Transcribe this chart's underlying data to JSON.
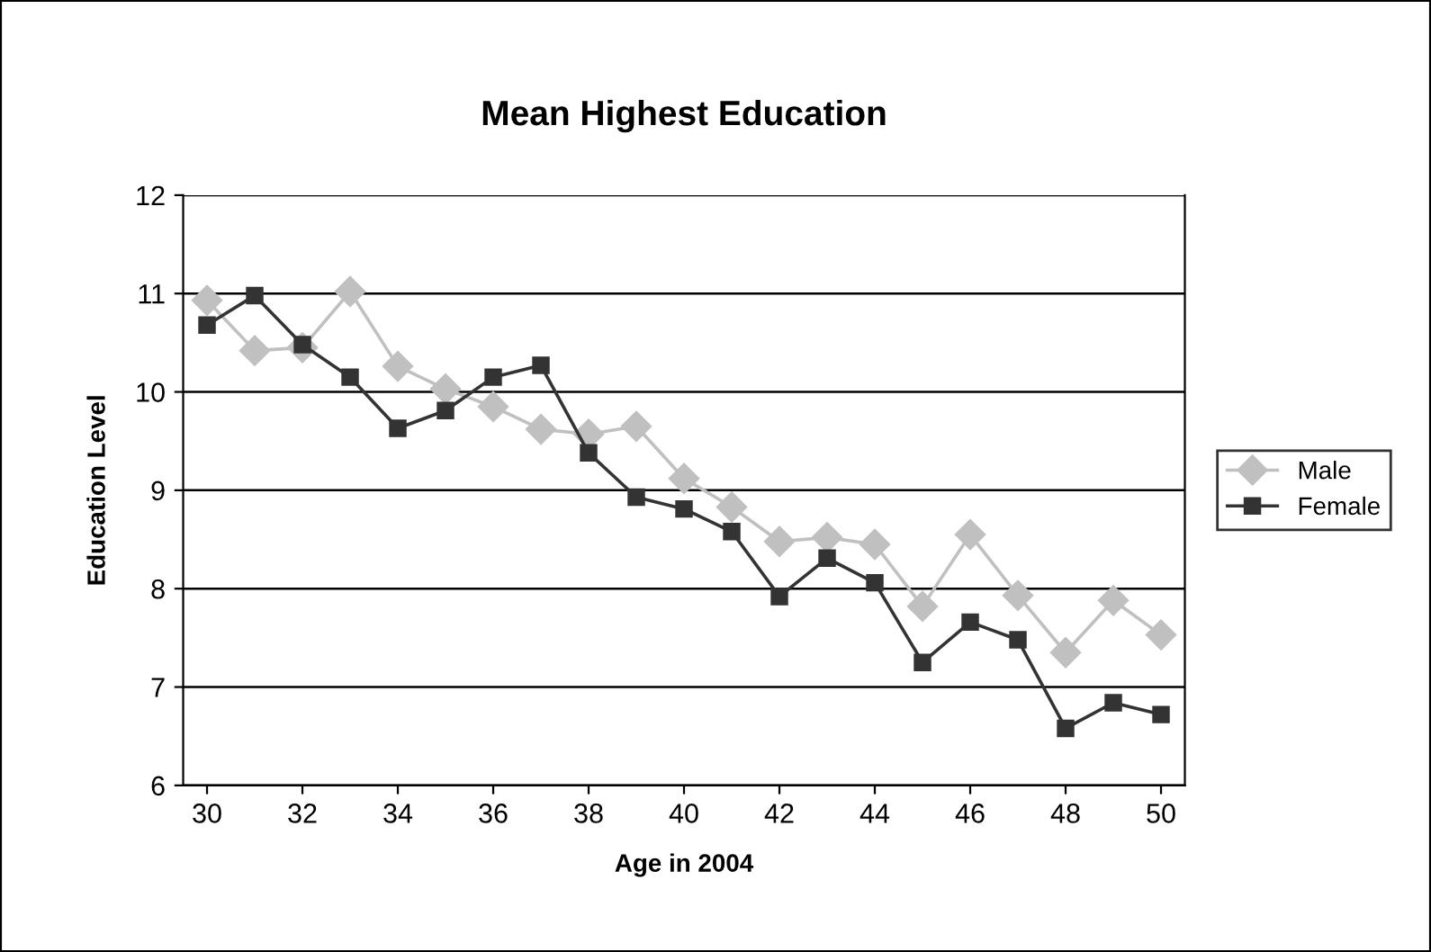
{
  "chart_data": {
    "type": "line",
    "title": "Mean Highest Education",
    "xlabel": "Age in 2004",
    "ylabel": "Education Level",
    "x": [
      30,
      31,
      32,
      33,
      34,
      35,
      36,
      37,
      38,
      39,
      40,
      41,
      42,
      43,
      44,
      45,
      46,
      47,
      48,
      49,
      50
    ],
    "series": [
      {
        "name": "Male",
        "color": "#c0c0c0",
        "marker": "diamond",
        "values": [
          10.93,
          10.42,
          10.45,
          11.02,
          10.26,
          10.03,
          9.85,
          9.62,
          9.57,
          9.65,
          9.12,
          8.83,
          8.48,
          8.52,
          8.45,
          7.82,
          8.55,
          7.93,
          7.35,
          7.88,
          7.53
        ]
      },
      {
        "name": "Female",
        "color": "#333333",
        "marker": "square",
        "values": [
          10.68,
          10.98,
          10.48,
          10.15,
          9.63,
          9.81,
          10.15,
          10.27,
          9.38,
          8.93,
          8.81,
          8.58,
          7.92,
          8.31,
          8.06,
          7.25,
          7.66,
          7.48,
          6.58,
          6.84,
          6.72
        ]
      }
    ],
    "xlim": [
      29.5,
      50.5
    ],
    "xticks": [
      30,
      32,
      34,
      36,
      38,
      40,
      42,
      44,
      46,
      48,
      50
    ],
    "ylim": [
      6,
      12
    ],
    "yticks": [
      6,
      7,
      8,
      9,
      10,
      11,
      12
    ],
    "grid": "y",
    "legend": "right"
  }
}
